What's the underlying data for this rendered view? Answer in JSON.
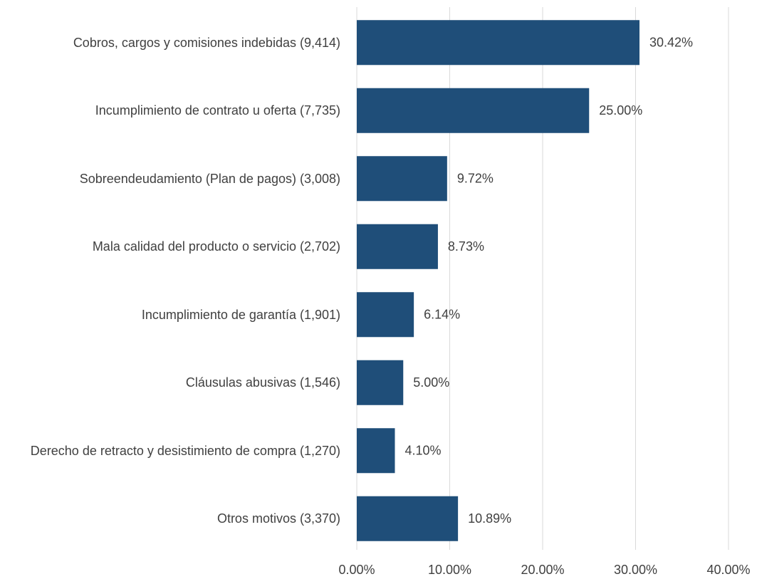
{
  "chart_data": {
    "type": "hbar",
    "categories": [
      "Cobros, cargos y comisiones indebidas (9,414)",
      "Incumplimiento de contrato u oferta (7,735)",
      "Sobreendeudamiento (Plan de pagos) (3,008)",
      "Mala calidad del producto o servicio (2,702)",
      "Incumplimiento de garantía (1,901)",
      "Cláusulas abusivas (1,546)",
      "Derecho de retracto y desistimiento de compra (1,270)",
      "Otros motivos (3,370)"
    ],
    "values": [
      30.42,
      25.0,
      9.72,
      8.73,
      6.14,
      5.0,
      4.1,
      10.89
    ],
    "value_labels": [
      "30.42%",
      "25.00%",
      "9.72%",
      "8.73%",
      "6.14%",
      "5.00%",
      "4.10%",
      "10.89%"
    ],
    "color": "#1f4e79",
    "xlim": [
      0,
      40
    ],
    "xticks": [
      {
        "value": 0,
        "label": "0.00%"
      },
      {
        "value": 10,
        "label": "10.00%"
      },
      {
        "value": 20,
        "label": "20.00%"
      },
      {
        "value": 30,
        "label": "30.00%"
      },
      {
        "value": 40,
        "label": "40.00%"
      }
    ],
    "grid": true
  }
}
